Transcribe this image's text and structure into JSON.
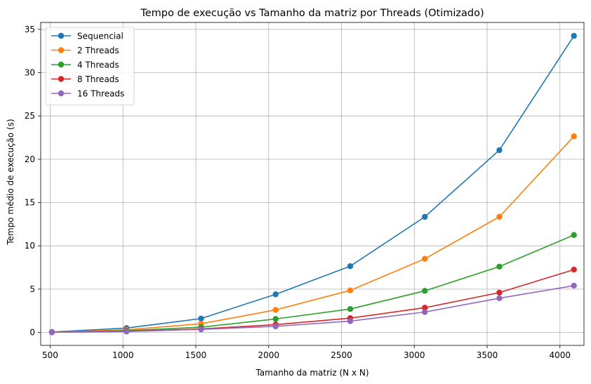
{
  "chart_data": {
    "type": "line",
    "title": "Tempo de execução vs Tamanho da matriz por Threads (Otimizado)",
    "xlabel": "Tamanho da matriz (N x N)",
    "ylabel": "Tempo médio de execução (s)",
    "xlim": [
      435,
      4165
    ],
    "ylim": [
      -1.5,
      35.8
    ],
    "xticks": [
      500,
      1000,
      1500,
      2000,
      2500,
      3000,
      3500,
      4000
    ],
    "yticks": [
      0,
      5,
      10,
      15,
      20,
      25,
      30,
      35
    ],
    "grid": true,
    "legend_position": "top-left",
    "x": [
      512,
      1024,
      1536,
      2048,
      2560,
      3072,
      3584,
      4096
    ],
    "series": [
      {
        "name": "Sequencial",
        "color": "#1f77b4",
        "values": [
          0.05,
          0.5,
          1.6,
          4.4,
          7.65,
          13.35,
          21.05,
          34.25
        ]
      },
      {
        "name": "2 Threads",
        "color": "#ff7f0e",
        "values": [
          0.03,
          0.3,
          1.0,
          2.6,
          4.85,
          8.5,
          13.35,
          22.65
        ]
      },
      {
        "name": "4 Threads",
        "color": "#2ca02c",
        "values": [
          0.02,
          0.2,
          0.6,
          1.55,
          2.7,
          4.8,
          7.6,
          11.25
        ]
      },
      {
        "name": "8 Threads",
        "color": "#d62728",
        "values": [
          0.01,
          0.12,
          0.4,
          0.9,
          1.65,
          2.85,
          4.6,
          7.25
        ]
      },
      {
        "name": "16 Threads",
        "color": "#9467bd",
        "values": [
          0.01,
          0.1,
          0.35,
          0.7,
          1.3,
          2.35,
          3.95,
          5.4
        ]
      }
    ]
  }
}
